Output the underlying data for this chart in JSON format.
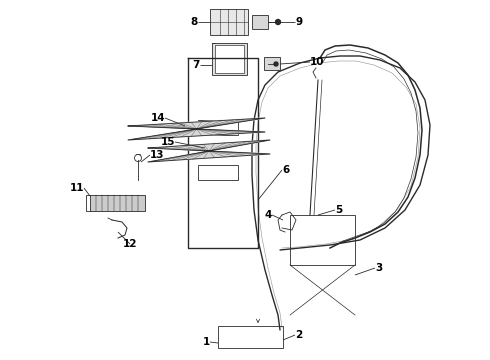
{
  "background_color": "#ffffff",
  "figure_width": 4.9,
  "figure_height": 3.6,
  "dpi": 100,
  "line_color": "#2a2a2a",
  "label_color": "#000000",
  "label_fontsize": 7.5,
  "leader_lw": 0.6
}
